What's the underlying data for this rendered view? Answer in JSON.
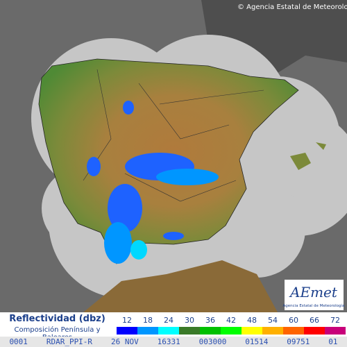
{
  "header": {
    "copyright": "© Agencia Estatal de Meteorología"
  },
  "legend": {
    "title": "Reflectividad (dbz)",
    "subtitle": "Composición Península y Baleares",
    "items": [
      {
        "label": "12",
        "color": "#0000fe"
      },
      {
        "label": "18",
        "color": "#0096ff"
      },
      {
        "label": "24",
        "color": "#00ffff"
      },
      {
        "label": "30",
        "color": "#3a7a28"
      },
      {
        "label": "36",
        "color": "#00c000"
      },
      {
        "label": "42",
        "color": "#00ff00"
      },
      {
        "label": "48",
        "color": "#ffff00"
      },
      {
        "label": "54",
        "color": "#ffb000"
      },
      {
        "label": "60",
        "color": "#ff6400"
      },
      {
        "label": "66",
        "color": "#ff0000"
      },
      {
        "label": "72",
        "color": "#c8007a"
      }
    ]
  },
  "logo": {
    "name": "AEmet",
    "caption": "Agencia Estatal de Meteorología"
  },
  "footer": {
    "fields": [
      "0001",
      "RDAR_PPI-R",
      "26 NOV",
      "16331",
      "003000",
      "01514",
      "09751",
      "01"
    ]
  }
}
